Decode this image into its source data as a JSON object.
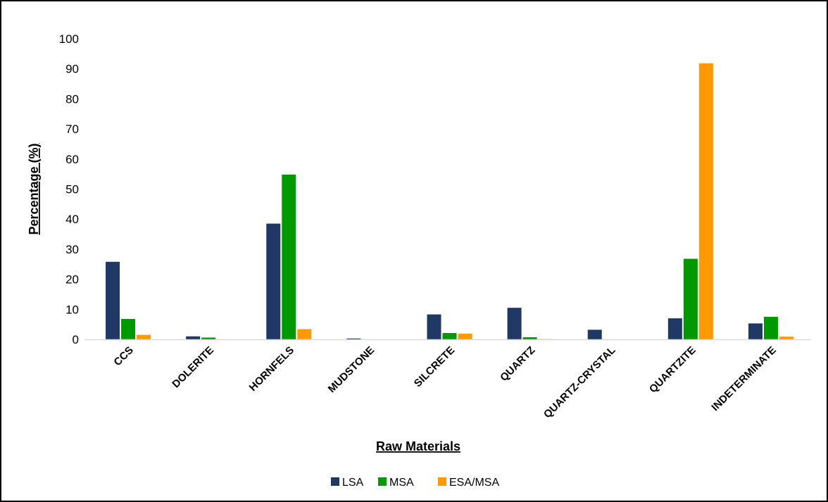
{
  "chart_data": {
    "type": "bar",
    "title": "",
    "xlabel": "Raw Materials",
    "ylabel": "Percentage (%)",
    "ylim": [
      0,
      100
    ],
    "yticks": [
      0,
      10,
      20,
      30,
      40,
      50,
      60,
      70,
      80,
      90,
      100
    ],
    "grid": false,
    "legend_position": "bottom",
    "categories": [
      "CCS",
      "DOLERITE",
      "HORNFELS",
      "MUDSTONE",
      "SILCRETE",
      "QUARTZ",
      "QUARTZ-CRYSTAL",
      "QUARTZITE",
      "INDETERMINATE"
    ],
    "series": [
      {
        "name": "LSA",
        "color": "#1f3864",
        "values": [
          25.8,
          1.0,
          38.5,
          0.3,
          8.3,
          10.5,
          3.2,
          7.0,
          5.3
        ]
      },
      {
        "name": "MSA",
        "color": "#009900",
        "values": [
          6.8,
          0.6,
          54.8,
          0.0,
          2.1,
          0.7,
          0.0,
          26.8,
          7.5
        ]
      },
      {
        "name": "ESA/MSA",
        "color": "#ff9900",
        "values": [
          1.5,
          0.0,
          3.4,
          0.0,
          1.9,
          0.1,
          0.0,
          91.8,
          0.9
        ]
      }
    ]
  }
}
